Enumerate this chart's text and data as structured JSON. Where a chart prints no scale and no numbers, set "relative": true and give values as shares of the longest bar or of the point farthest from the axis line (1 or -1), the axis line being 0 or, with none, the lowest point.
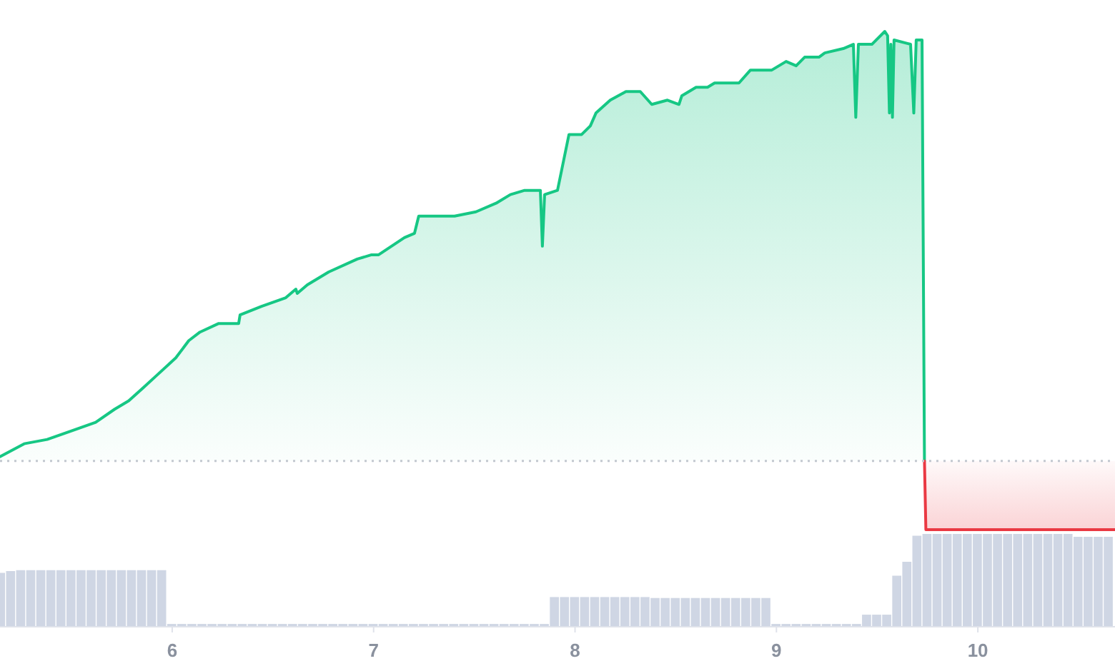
{
  "chart_data": [
    {
      "type": "area",
      "relative": true,
      "tick_labels": false,
      "xlim": [
        5.145,
        10.681
      ],
      "ref_lines": [
        {
          "axis": "y",
          "value": 0,
          "line_style": "dotted",
          "color": "#c3c8d0"
        }
      ],
      "series": [
        {
          "color": "#16c784",
          "x": [
            5.145,
            5.265,
            5.379,
            5.5,
            5.62,
            5.713,
            5.784,
            5.855,
            5.925,
            6.018,
            6.082,
            6.138,
            6.231,
            6.33,
            6.337,
            6.444,
            6.564,
            6.614,
            6.621,
            6.671,
            6.777,
            6.919,
            6.99,
            7.025,
            7.153,
            7.203,
            7.224,
            7.274,
            7.381,
            7.402,
            7.508,
            7.608,
            7.679,
            7.75,
            7.828,
            7.838,
            7.849,
            7.913,
            7.97,
            8.033,
            8.076,
            8.104,
            8.175,
            8.253,
            8.324,
            8.381,
            8.459,
            8.516,
            8.53,
            8.601,
            8.658,
            8.693,
            8.814,
            8.871,
            8.977,
            9.048,
            9.098,
            9.14,
            9.211,
            9.24,
            9.332,
            9.382,
            9.394,
            9.407,
            9.474,
            9.538,
            9.552,
            9.561,
            9.568,
            9.576,
            9.584,
            9.666,
            9.682,
            9.694,
            9.723,
            9.735
          ],
          "values": [
            0.01,
            0.04,
            0.05,
            0.07,
            0.09,
            0.12,
            0.14,
            0.17,
            0.2,
            0.24,
            0.28,
            0.3,
            0.32,
            0.32,
            0.34,
            0.36,
            0.38,
            0.4,
            0.39,
            0.41,
            0.44,
            0.47,
            0.48,
            0.48,
            0.52,
            0.53,
            0.57,
            0.57,
            0.57,
            0.57,
            0.58,
            0.6,
            0.62,
            0.63,
            0.63,
            0.5,
            0.62,
            0.63,
            0.76,
            0.76,
            0.78,
            0.81,
            0.84,
            0.86,
            0.86,
            0.83,
            0.84,
            0.83,
            0.85,
            0.87,
            0.87,
            0.88,
            0.88,
            0.91,
            0.91,
            0.93,
            0.92,
            0.94,
            0.94,
            0.95,
            0.96,
            0.97,
            0.8,
            0.97,
            0.97,
            1,
            0.99,
            0.81,
            0.97,
            0.8,
            0.98,
            0.97,
            0.81,
            0.98,
            0.98,
            0
          ]
        },
        {
          "color": "#ea3943",
          "x": [
            9.735,
            9.742,
            9.8,
            10.2,
            10.681
          ],
          "values": [
            0,
            -0.16,
            -0.16,
            -0.16,
            -0.16
          ]
        }
      ]
    },
    {
      "type": "bar",
      "relative": true,
      "tick_labels": "x",
      "xlim": [
        5.145,
        10.681
      ],
      "xticks": [
        6,
        7,
        8,
        9,
        10
      ],
      "color": "#cfd6e4",
      "x": [
        5.15,
        5.2,
        5.25,
        5.3,
        5.35,
        5.4,
        5.45,
        5.5,
        5.55,
        5.6,
        5.65,
        5.7,
        5.75,
        5.8,
        5.85,
        5.9,
        5.95,
        6,
        6.05,
        6.1,
        6.15,
        6.2,
        6.25,
        6.3,
        6.35,
        6.4,
        6.45,
        6.5,
        6.55,
        6.6,
        6.65,
        6.7,
        6.75,
        6.8,
        6.85,
        6.9,
        6.95,
        7,
        7.05,
        7.1,
        7.15,
        7.2,
        7.25,
        7.3,
        7.35,
        7.4,
        7.45,
        7.5,
        7.55,
        7.6,
        7.65,
        7.7,
        7.75,
        7.8,
        7.85,
        7.9,
        7.95,
        8,
        8.05,
        8.1,
        8.15,
        8.2,
        8.25,
        8.3,
        8.35,
        8.4,
        8.45,
        8.5,
        8.55,
        8.6,
        8.65,
        8.7,
        8.75,
        8.8,
        8.85,
        8.9,
        8.95,
        9,
        9.05,
        9.1,
        9.15,
        9.2,
        9.25,
        9.3,
        9.35,
        9.4,
        9.45,
        9.5,
        9.55,
        9.6,
        9.65,
        9.7,
        9.75,
        9.8,
        9.85,
        9.9,
        9.95,
        10,
        10.05,
        10.1,
        10.15,
        10.2,
        10.25,
        10.3,
        10.35,
        10.4,
        10.45,
        10.5,
        10.55,
        10.6,
        10.65
      ],
      "values": [
        0.58,
        0.6,
        0.61,
        0.61,
        0.61,
        0.61,
        0.61,
        0.61,
        0.61,
        0.61,
        0.61,
        0.61,
        0.61,
        0.61,
        0.61,
        0.61,
        0.61,
        0.03,
        0.03,
        0.03,
        0.03,
        0.03,
        0.03,
        0.03,
        0.03,
        0.03,
        0.03,
        0.03,
        0.03,
        0.03,
        0.03,
        0.03,
        0.03,
        0.03,
        0.03,
        0.03,
        0.03,
        0.03,
        0.03,
        0.03,
        0.03,
        0.03,
        0.03,
        0.03,
        0.03,
        0.03,
        0.03,
        0.03,
        0.03,
        0.03,
        0.03,
        0.03,
        0.03,
        0.03,
        0.03,
        0.32,
        0.32,
        0.32,
        0.32,
        0.32,
        0.32,
        0.32,
        0.32,
        0.32,
        0.32,
        0.31,
        0.31,
        0.31,
        0.31,
        0.31,
        0.31,
        0.31,
        0.31,
        0.31,
        0.31,
        0.31,
        0.31,
        0.03,
        0.03,
        0.03,
        0.03,
        0.03,
        0.03,
        0.03,
        0.03,
        0.03,
        0.13,
        0.13,
        0.13,
        0.55,
        0.7,
        0.98,
        1,
        1,
        1,
        1,
        1,
        1,
        1,
        1,
        1,
        1,
        1,
        1,
        1,
        1,
        1,
        0.97,
        0.97,
        0.97,
        0.97
      ]
    }
  ]
}
